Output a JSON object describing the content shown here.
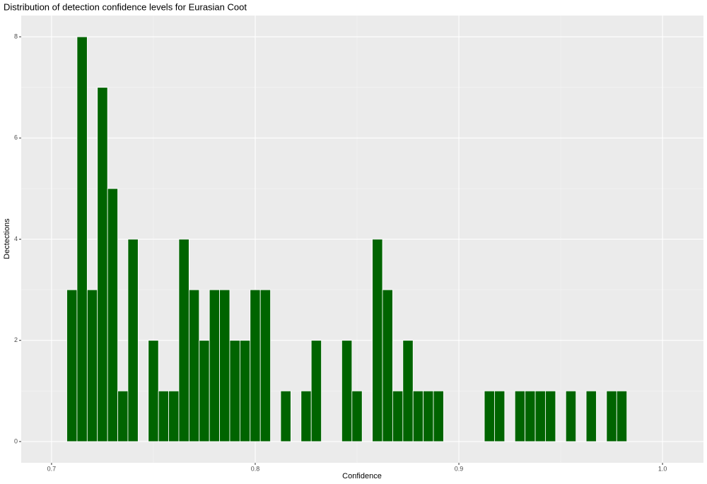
{
  "chart_data": {
    "type": "histogram",
    "title": "Distribution of detection confidence levels for Eurasian Coot",
    "x_label": "Confidence",
    "y_label": "Dectections",
    "bins": [
      0.7075,
      0.7125,
      0.7175,
      0.7225,
      0.7275,
      0.7325,
      0.7375,
      0.7425,
      0.7475,
      0.7525,
      0.7575,
      0.7625,
      0.7675,
      0.7725,
      0.7775,
      0.7825,
      0.7875,
      0.7925,
      0.7975,
      0.8025,
      0.8075,
      0.8125,
      0.8175,
      0.8225,
      0.8275,
      0.8325,
      0.8375,
      0.8425,
      0.8475,
      0.8525,
      0.8575,
      0.8625,
      0.8675,
      0.8725,
      0.8775,
      0.8825,
      0.8875,
      0.8925,
      0.8975,
      0.9025,
      0.9075,
      0.9125,
      0.9175,
      0.9225,
      0.9275,
      0.9325,
      0.9375,
      0.9425,
      0.9475,
      0.9525,
      0.9575,
      0.9625,
      0.9675,
      0.9725,
      0.9775,
      0.9825
    ],
    "values": [
      3,
      8,
      3,
      7,
      5,
      1,
      4,
      0,
      2,
      1,
      1,
      4,
      3,
      2,
      3,
      3,
      2,
      2,
      3,
      3,
      0,
      1,
      0,
      1,
      2,
      0,
      0,
      2,
      1,
      0,
      4,
      3,
      1,
      2,
      1,
      1,
      1,
      0,
      0,
      0,
      0,
      1,
      1,
      0,
      1,
      1,
      1,
      1,
      0,
      1,
      0,
      1,
      0,
      1,
      1
    ],
    "color": "#006400",
    "xlim": [
      0.6851,
      1.0201
    ],
    "ylim": [
      -0.42,
      8.42
    ],
    "xticks": [
      0.7,
      0.8,
      0.9,
      {
        "value": 1,
        "label": "1.0"
      }
    ],
    "yticks": [
      0,
      2,
      4,
      6,
      8
    ],
    "grid": true
  }
}
